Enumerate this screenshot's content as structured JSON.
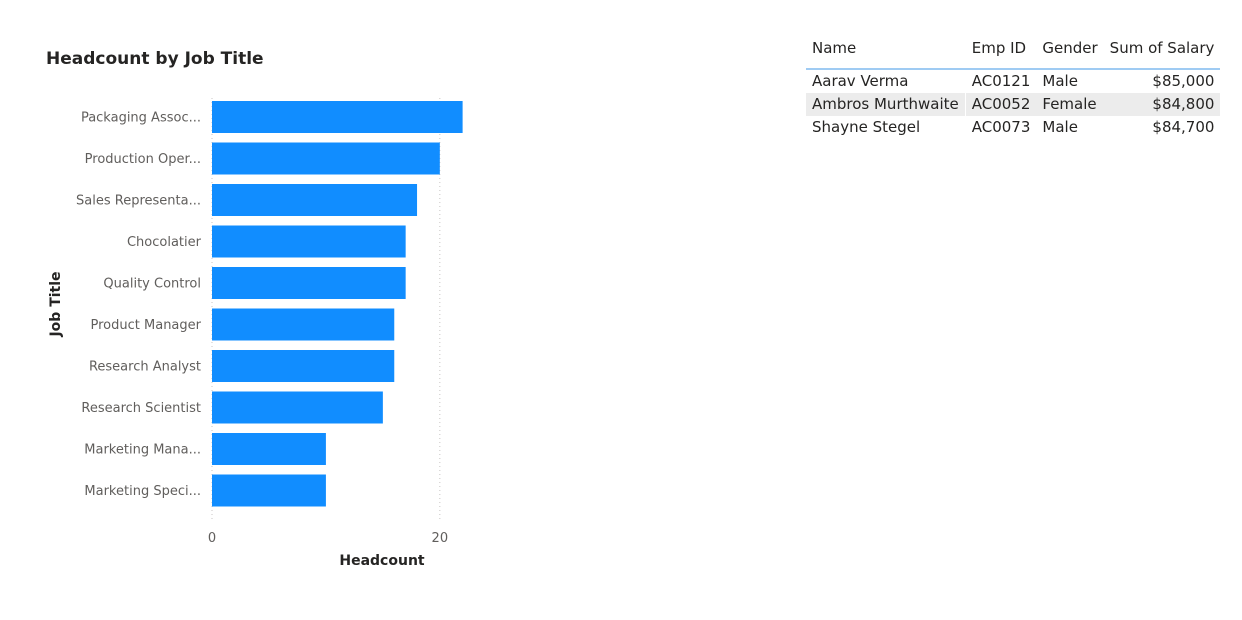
{
  "chart_data": {
    "type": "bar",
    "orientation": "horizontal",
    "title": "Headcount by Job Title",
    "xlabel": "Headcount",
    "ylabel": "Job Title",
    "categories": [
      "Packaging Assoc...",
      "Production Oper...",
      "Sales Representa...",
      "Chocolatier",
      "Quality Control",
      "Product Manager",
      "Research Analyst",
      "Research Scientist",
      "Marketing Mana...",
      "Marketing Speci..."
    ],
    "values": [
      22,
      20,
      18,
      17,
      17,
      16,
      16,
      15,
      10,
      10
    ],
    "xlim": [
      0,
      23
    ],
    "xticks": [
      0,
      20
    ],
    "bar_color": "#118dff",
    "grid": "vertical dotted"
  },
  "table": {
    "columns": [
      "Name",
      "Emp ID",
      "Gender",
      "Sum of Salary"
    ],
    "rows": [
      [
        "Aarav Verma",
        "AC0121",
        "Male",
        "$85,000"
      ],
      [
        "Ambros Murthwaite",
        "AC0052",
        "Female",
        "$84,800"
      ],
      [
        "Shayne Stegel",
        "AC0073",
        "Male",
        "$84,700"
      ]
    ],
    "header_underline_color": "#9fcbf3",
    "alt_row_color": "#ececec"
  }
}
